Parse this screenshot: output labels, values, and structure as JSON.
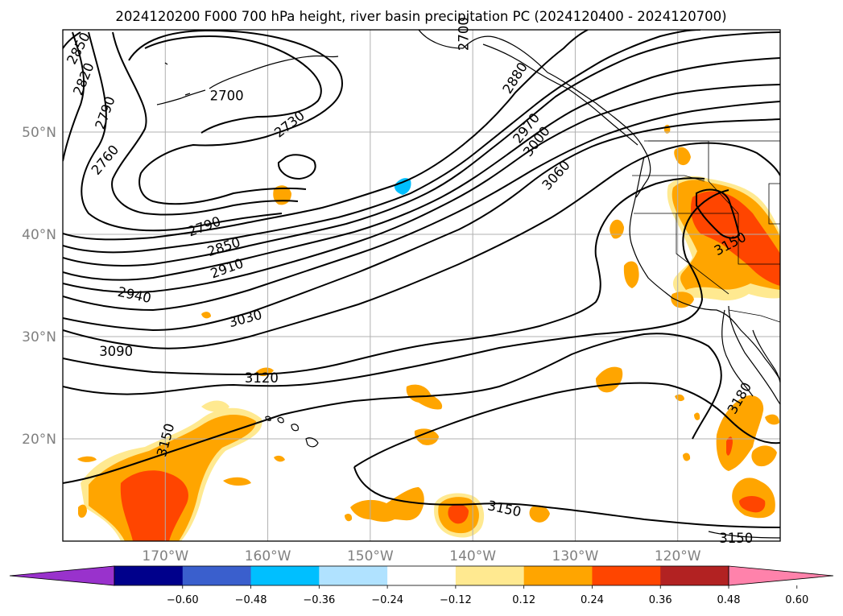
{
  "title": "2024120200 F000 700 hPa height, river basin precipitation PC (2024120400 - 2024120700)",
  "chart_data": {
    "type": "contour-map",
    "title": "2024120200 F000 700 hPa height, river basin precipitation PC (2024120400 - 2024120700)",
    "map_extent": {
      "lon": [
        -180,
        -110
      ],
      "lat": [
        10,
        60
      ]
    },
    "grid": true,
    "lat_ticks": [
      {
        "value": 20,
        "label": "20°N"
      },
      {
        "value": 30,
        "label": "30°N"
      },
      {
        "value": 40,
        "label": "40°N"
      },
      {
        "value": 50,
        "label": "50°N"
      }
    ],
    "lon_ticks": [
      {
        "value": -170,
        "label": "170°W"
      },
      {
        "value": -160,
        "label": "160°W"
      },
      {
        "value": -150,
        "label": "150°W"
      },
      {
        "value": -140,
        "label": "140°W"
      },
      {
        "value": -130,
        "label": "130°W"
      },
      {
        "value": -120,
        "label": "120°W"
      }
    ],
    "height_contour_labels": [
      {
        "text": "2850",
        "lon": -178.5,
        "lat": 58.2,
        "rot": -62
      },
      {
        "text": "2820",
        "lon": -178.0,
        "lat": 55.2,
        "rot": -68
      },
      {
        "text": "2790",
        "lon": -175.9,
        "lat": 51.9,
        "rot": -70
      },
      {
        "text": "2760",
        "lon": -175.9,
        "lat": 47.3,
        "rot": -50
      },
      {
        "text": "2700",
        "lon": -164.0,
        "lat": 53.6,
        "rot": 0
      },
      {
        "text": "2730",
        "lon": -157.9,
        "lat": 50.8,
        "rot": -38
      },
      {
        "text": "2880",
        "lon": -135.9,
        "lat": 55.3,
        "rot": -58
      },
      {
        "text": "2970",
        "lon": -134.8,
        "lat": 50.4,
        "rot": -52
      },
      {
        "text": "3000",
        "lon": -133.8,
        "lat": 49.1,
        "rot": -52
      },
      {
        "text": "3060",
        "lon": -131.9,
        "lat": 45.8,
        "rot": -48
      },
      {
        "text": "2790",
        "lon": -166.2,
        "lat": 40.8,
        "rot": -20
      },
      {
        "text": "2850",
        "lon": -164.3,
        "lat": 38.8,
        "rot": -18
      },
      {
        "text": "2910",
        "lon": -164.0,
        "lat": 36.7,
        "rot": -20
      },
      {
        "text": "2940",
        "lon": -173.0,
        "lat": 34.1,
        "rot": 12
      },
      {
        "text": "3030",
        "lon": -162.2,
        "lat": 31.8,
        "rot": -15
      },
      {
        "text": "3090",
        "lon": -174.8,
        "lat": 28.6,
        "rot": 0
      },
      {
        "text": "3120",
        "lon": -160.6,
        "lat": 26.0,
        "rot": 0
      },
      {
        "text": "3150",
        "lon": -170.0,
        "lat": 19.9,
        "rot": -75
      },
      {
        "text": "3150",
        "lon": -114.9,
        "lat": 39.1,
        "rot": -28
      },
      {
        "text": "3180",
        "lon": -114.0,
        "lat": 24.0,
        "rot": -60
      },
      {
        "text": "3150",
        "lon": -136.9,
        "lat": 13.2,
        "rot": 12
      },
      {
        "text": "3150",
        "lon": -114.3,
        "lat": 10.3,
        "rot": 0
      },
      {
        "text": "2700",
        "lon": -140.9,
        "lat": 59.6,
        "rot": -90
      }
    ],
    "colorbar": {
      "extend": "both",
      "ticks": [
        "−0.60",
        "−0.48",
        "−0.36",
        "−0.24",
        "−0.12",
        "0.12",
        "0.24",
        "0.36",
        "0.48",
        "0.60"
      ],
      "colors": [
        "#9932cc",
        "#00008b",
        "#3a5fcd",
        "#00bfff",
        "#b0e2ff",
        "#ffffff",
        "#ffe990",
        "#ffa500",
        "#ff4500",
        "#b22222",
        "#ff82ab"
      ]
    },
    "precip_colors": {
      "low": "#ffe990",
      "mid": "#ffa500",
      "high": "#ff4500",
      "neg": "#00bfff",
      "neg_light": "#b0e2ff"
    }
  }
}
